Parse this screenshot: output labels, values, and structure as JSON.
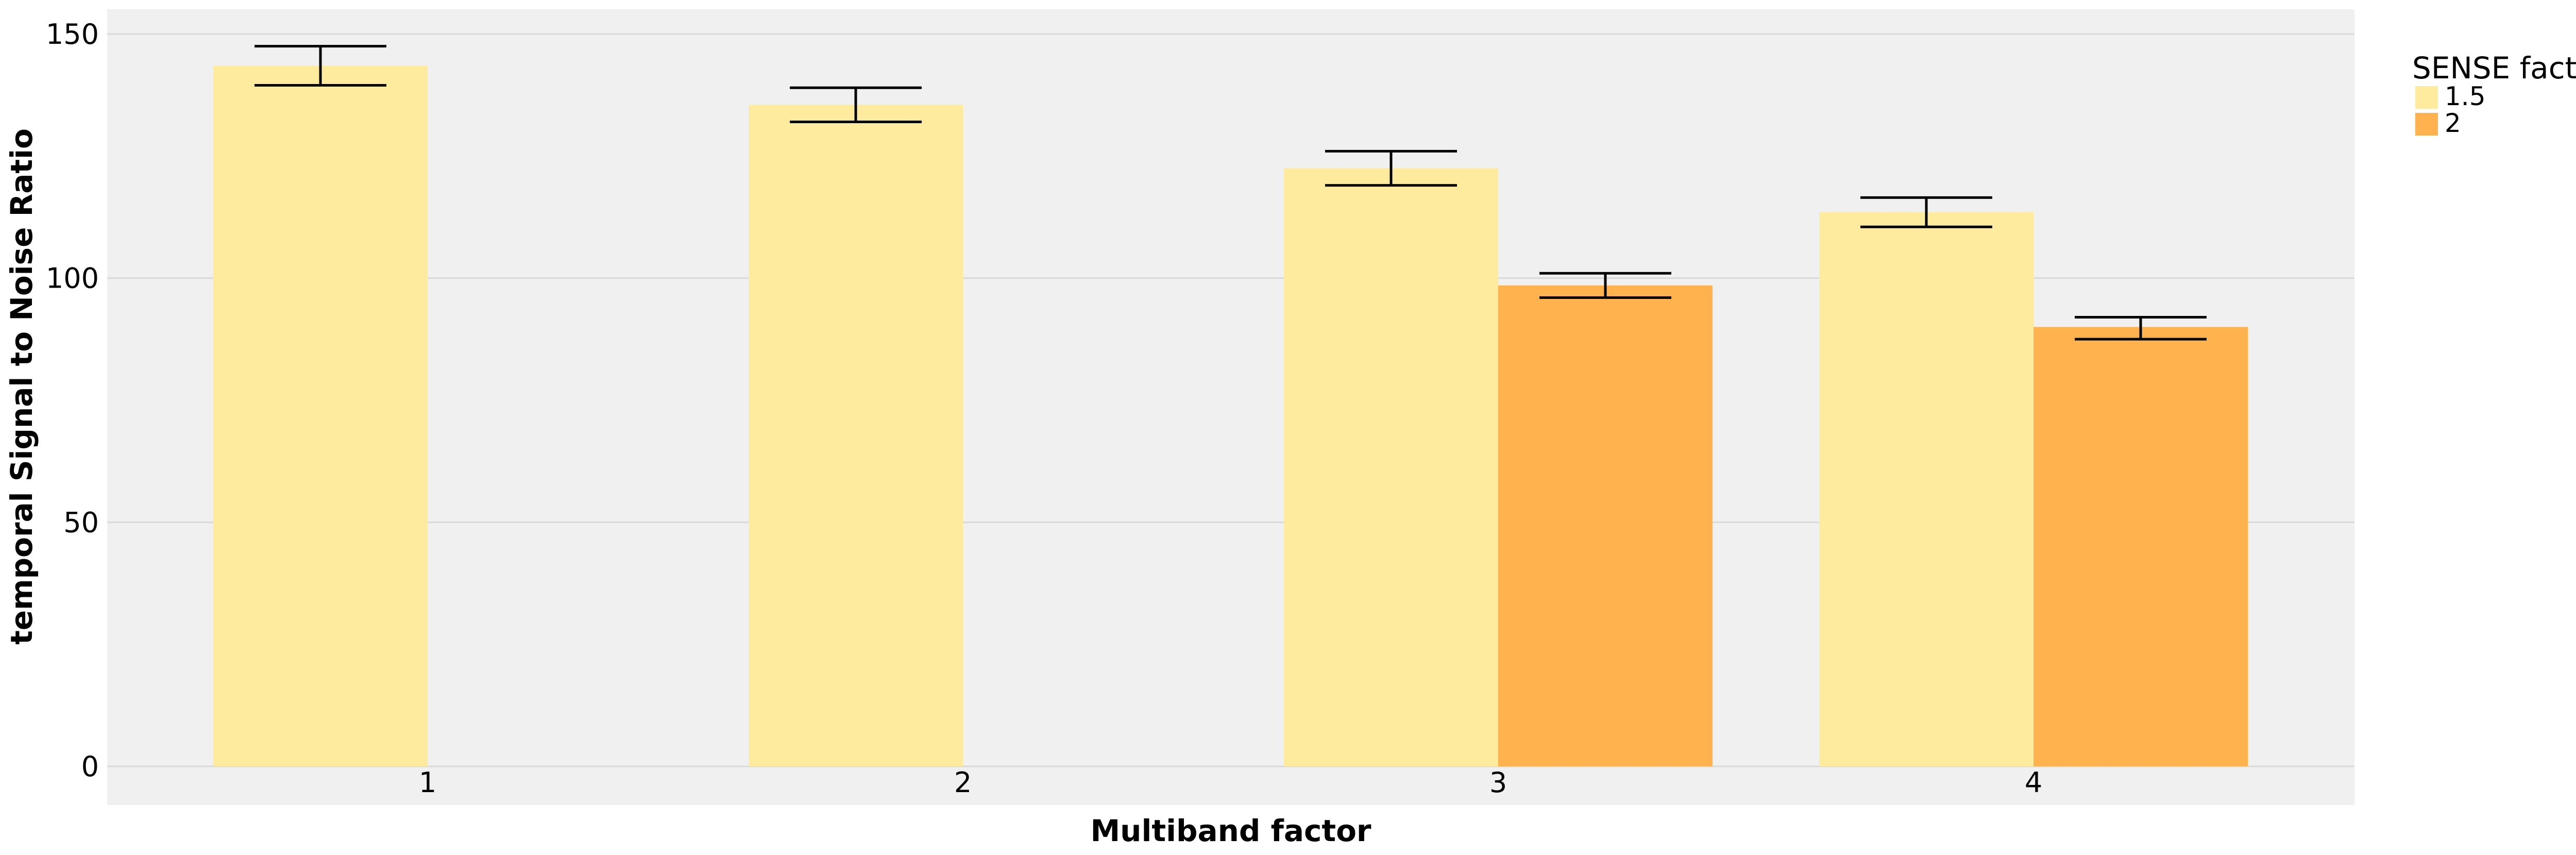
{
  "chart_data": {
    "type": "bar",
    "xlabel": "Multiband factor",
    "ylabel": "temporal Signal to Noise Ratio",
    "categories": [
      "1",
      "2",
      "3",
      "4"
    ],
    "ylim": [
      0,
      150
    ],
    "yticks": [
      0,
      50,
      100,
      150
    ],
    "grid": true,
    "legend": {
      "title": "SENSE factor",
      "placement": "right"
    },
    "series": [
      {
        "name": "1.5",
        "color": "#ffeb9e",
        "values": [
          143.5,
          135.5,
          122.5,
          113.5
        ],
        "error_low": [
          139.5,
          132,
          119,
          110.5
        ],
        "error_high": [
          147.5,
          139,
          126,
          116.5
        ]
      },
      {
        "name": "2",
        "color": "#ffb24d",
        "values": [
          null,
          null,
          98.5,
          90
        ],
        "error_low": [
          null,
          null,
          96,
          87.5
        ],
        "error_high": [
          null,
          null,
          101,
          92
        ]
      }
    ],
    "panel_background": "#f0f0f0",
    "grid_color": "#d9d9d9"
  }
}
